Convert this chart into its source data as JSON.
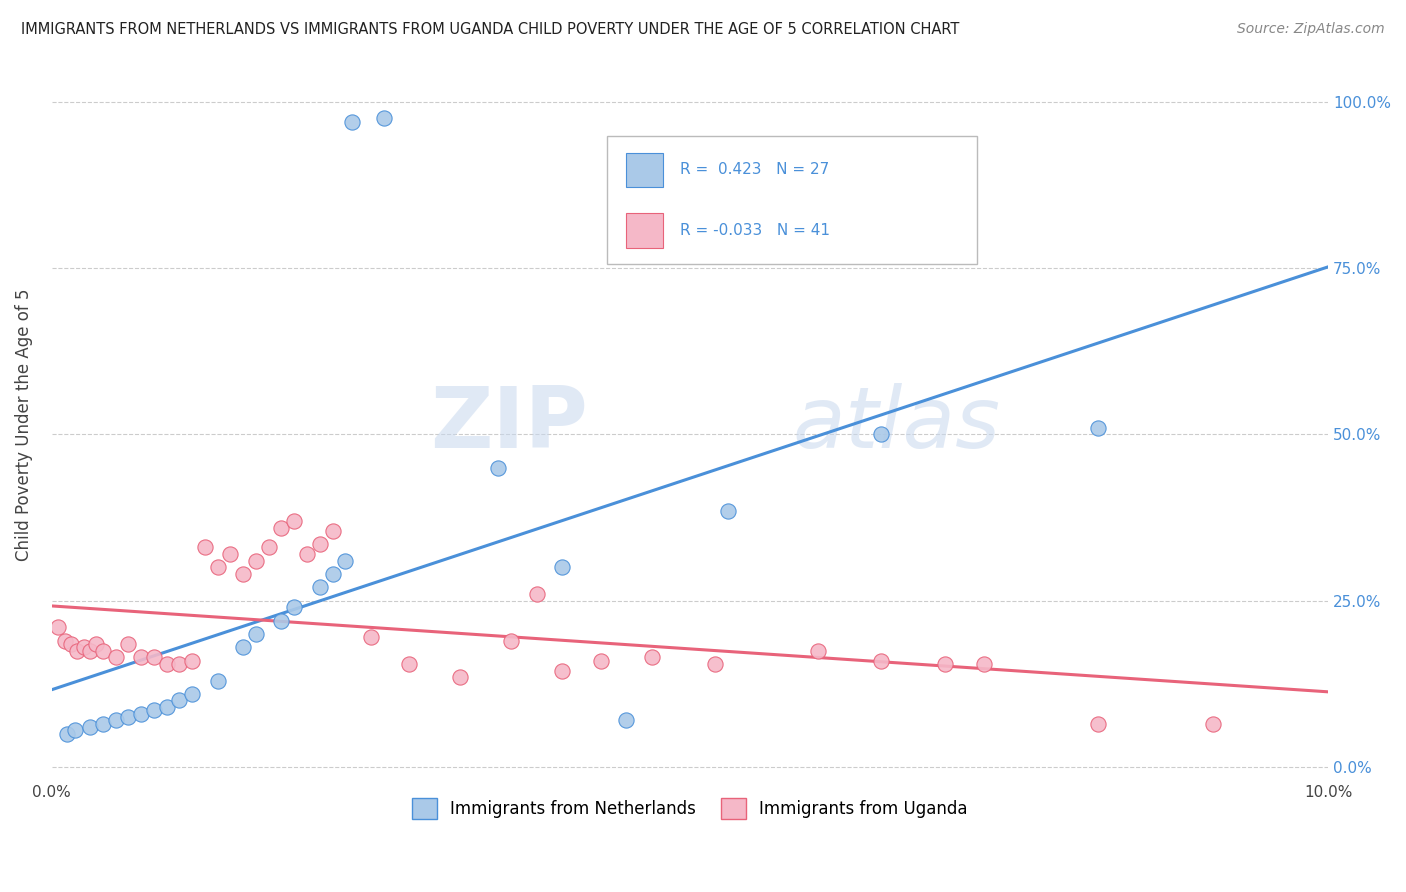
{
  "title": "IMMIGRANTS FROM NETHERLANDS VS IMMIGRANTS FROM UGANDA CHILD POVERTY UNDER THE AGE OF 5 CORRELATION CHART",
  "source": "Source: ZipAtlas.com",
  "ylabel": "Child Poverty Under the Age of 5",
  "xmin": 0.0,
  "xmax": 0.1,
  "ymin": -0.02,
  "ymax": 1.05,
  "yticks": [
    0.0,
    0.25,
    0.5,
    0.75,
    1.0
  ],
  "ytick_labels_left": [
    "",
    "",
    "",
    "",
    ""
  ],
  "ytick_labels_right": [
    "0.0%",
    "25.0%",
    "50.0%",
    "75.0%",
    "100.0%"
  ],
  "xticks": [
    0.0,
    0.02,
    0.04,
    0.06,
    0.08,
    0.1
  ],
  "xtick_labels": [
    "0.0%",
    "",
    "",
    "",
    "",
    "10.0%"
  ],
  "netherlands_R": 0.423,
  "netherlands_N": 27,
  "uganda_R": -0.033,
  "uganda_N": 41,
  "netherlands_color": "#aac9e8",
  "uganda_color": "#f5b8c8",
  "netherlands_line_color": "#4a90d9",
  "uganda_line_color": "#e8637a",
  "legend_label_netherlands": "Immigrants from Netherlands",
  "legend_label_uganda": "Immigrants from Uganda",
  "watermark_zip": "ZIP",
  "watermark_atlas": "atlas",
  "netherlands_scatter_x": [
    0.0235,
    0.026,
    0.0012,
    0.0018,
    0.003,
    0.004,
    0.005,
    0.006,
    0.007,
    0.008,
    0.009,
    0.01,
    0.011,
    0.013,
    0.015,
    0.016,
    0.018,
    0.019,
    0.021,
    0.022,
    0.023,
    0.035,
    0.04,
    0.045,
    0.065,
    0.082,
    0.053
  ],
  "netherlands_scatter_y": [
    0.97,
    0.975,
    0.05,
    0.055,
    0.06,
    0.065,
    0.07,
    0.075,
    0.08,
    0.085,
    0.09,
    0.1,
    0.11,
    0.13,
    0.18,
    0.2,
    0.22,
    0.24,
    0.27,
    0.29,
    0.31,
    0.45,
    0.3,
    0.07,
    0.5,
    0.51,
    0.385
  ],
  "uganda_scatter_x": [
    0.0005,
    0.001,
    0.0015,
    0.002,
    0.0025,
    0.003,
    0.0035,
    0.004,
    0.005,
    0.006,
    0.007,
    0.008,
    0.009,
    0.01,
    0.011,
    0.012,
    0.013,
    0.014,
    0.015,
    0.016,
    0.017,
    0.018,
    0.019,
    0.02,
    0.021,
    0.022,
    0.025,
    0.028,
    0.032,
    0.036,
    0.038,
    0.04,
    0.043,
    0.047,
    0.052,
    0.06,
    0.065,
    0.07,
    0.073,
    0.082,
    0.091
  ],
  "uganda_scatter_y": [
    0.21,
    0.19,
    0.185,
    0.175,
    0.18,
    0.175,
    0.185,
    0.175,
    0.165,
    0.185,
    0.165,
    0.165,
    0.155,
    0.155,
    0.16,
    0.33,
    0.3,
    0.32,
    0.29,
    0.31,
    0.33,
    0.36,
    0.37,
    0.32,
    0.335,
    0.355,
    0.195,
    0.155,
    0.135,
    0.19,
    0.26,
    0.145,
    0.16,
    0.165,
    0.155,
    0.175,
    0.16,
    0.155,
    0.155,
    0.065,
    0.065
  ]
}
